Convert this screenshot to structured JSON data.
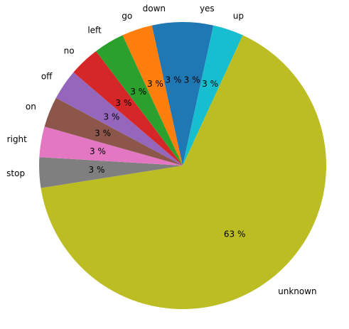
{
  "chart_data": {
    "type": "pie",
    "labels": [
      "yes",
      "up",
      "unknown",
      "stop",
      "right",
      "on",
      "off",
      "no",
      "left",
      "go",
      "down"
    ],
    "values": [
      3.3,
      3.3,
      63.0,
      3.3,
      3.3,
      3.3,
      3.3,
      3.3,
      3.3,
      3.3,
      3.3
    ],
    "percent_labels": [
      "3 %",
      "3 %",
      "63 %",
      "3 %",
      "3 %",
      "3 %",
      "3 %",
      "3 %",
      "3 %",
      "3 %",
      "3 %"
    ],
    "colors": [
      "#1f77b4",
      "#17becf",
      "#bcbd22",
      "#7f7f7f",
      "#e377c2",
      "#8c564b",
      "#9467bd",
      "#d62728",
      "#2ca02c",
      "#ff7f0e",
      "#1f77b4"
    ],
    "start_angle_deg": 90,
    "direction": "clockwise"
  }
}
